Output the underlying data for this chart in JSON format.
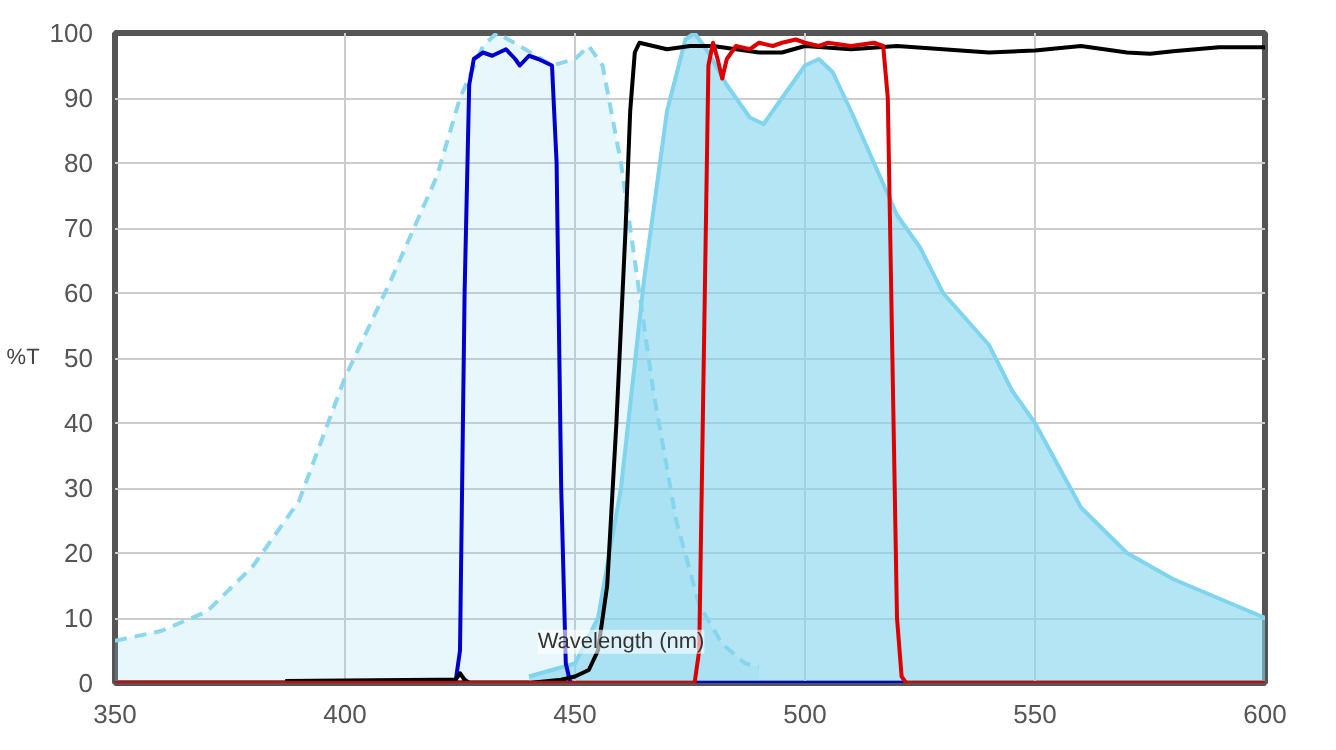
{
  "chart_data": {
    "type": "line",
    "xlabel": "Wavelength (nm)",
    "ylabel": "%T",
    "xlim": [
      350,
      600
    ],
    "ylim": [
      0,
      100
    ],
    "xticks": [
      350,
      400,
      450,
      500,
      550,
      600
    ],
    "yticks": [
      0,
      10,
      20,
      30,
      40,
      50,
      60,
      70,
      80,
      90,
      100
    ],
    "grid": true,
    "series": [
      {
        "type": "area",
        "line_style": "dashed",
        "color": "#8dd7ee",
        "x": [
          350,
          360,
          370,
          380,
          390,
          400,
          410,
          420,
          425,
          430,
          433,
          438,
          445,
          450,
          453,
          456,
          460,
          463,
          467,
          472,
          477,
          482,
          487,
          490
        ],
        "values": [
          6.5,
          8,
          11,
          18,
          28,
          47,
          62,
          78,
          90,
          98,
          100,
          98,
          95,
          96,
          98,
          95,
          80,
          65,
          45,
          25,
          12,
          6,
          3,
          2.5
        ]
      },
      {
        "type": "area",
        "line_style": "solid",
        "color": "#80d4ee",
        "x": [
          440,
          450,
          455,
          460,
          465,
          470,
          474,
          476,
          479,
          483,
          488,
          491,
          495,
          500,
          503,
          506,
          510,
          515,
          520,
          525,
          530,
          540,
          545,
          550,
          560,
          570,
          580,
          590,
          600
        ],
        "values": [
          1,
          3,
          10,
          30,
          62,
          88,
          99,
          100,
          97,
          92,
          87,
          86,
          90,
          95,
          96,
          94,
          88,
          80,
          72,
          67,
          60,
          52,
          45,
          40,
          27,
          20,
          16,
          13,
          10
        ]
      },
      {
        "line_style": "solid",
        "color": "#0000cc",
        "x": [
          350,
          424,
          425,
          426,
          427,
          428,
          430,
          432,
          435,
          437,
          438,
          440,
          442,
          445,
          446,
          447,
          448,
          449,
          600
        ],
        "values": [
          0,
          0,
          5,
          60,
          92,
          96,
          97,
          96.5,
          97.5,
          96,
          95,
          96.5,
          96,
          95,
          80,
          30,
          3,
          0,
          0
        ]
      },
      {
        "line_style": "solid",
        "color": "#000000",
        "x": [
          387,
          420,
          424,
          425,
          426,
          427,
          440,
          447,
          450,
          453,
          455,
          457,
          459,
          461,
          462,
          463,
          464,
          467,
          470,
          475,
          480,
          485,
          490,
          495,
          500,
          510,
          520,
          530,
          540,
          550,
          560,
          570,
          575,
          580,
          590,
          600
        ],
        "values": [
          0.3,
          0.5,
          0.5,
          1.5,
          0.5,
          0,
          0,
          0.5,
          1,
          2,
          5,
          15,
          40,
          70,
          88,
          97,
          98.5,
          98,
          97.5,
          98,
          98,
          97.5,
          97,
          97,
          98,
          97.5,
          98,
          97.5,
          97,
          97.3,
          98,
          97,
          96.8,
          97.2,
          97.8,
          97.8
        ]
      },
      {
        "line_style": "solid",
        "color": "#dd0000",
        "x": [
          350,
          476,
          477,
          478,
          479,
          480,
          481,
          482,
          483,
          485,
          488,
          490,
          493,
          495,
          498,
          500,
          503,
          505,
          510,
          515,
          517,
          518,
          519,
          520,
          521,
          522,
          600
        ],
        "values": [
          0,
          0,
          5,
          50,
          95,
          98.5,
          96,
          93,
          96,
          98,
          97.5,
          98.5,
          98,
          98.5,
          99,
          98.5,
          98,
          98.5,
          98,
          98.5,
          98,
          90,
          50,
          10,
          1,
          0,
          0
        ]
      }
    ]
  }
}
